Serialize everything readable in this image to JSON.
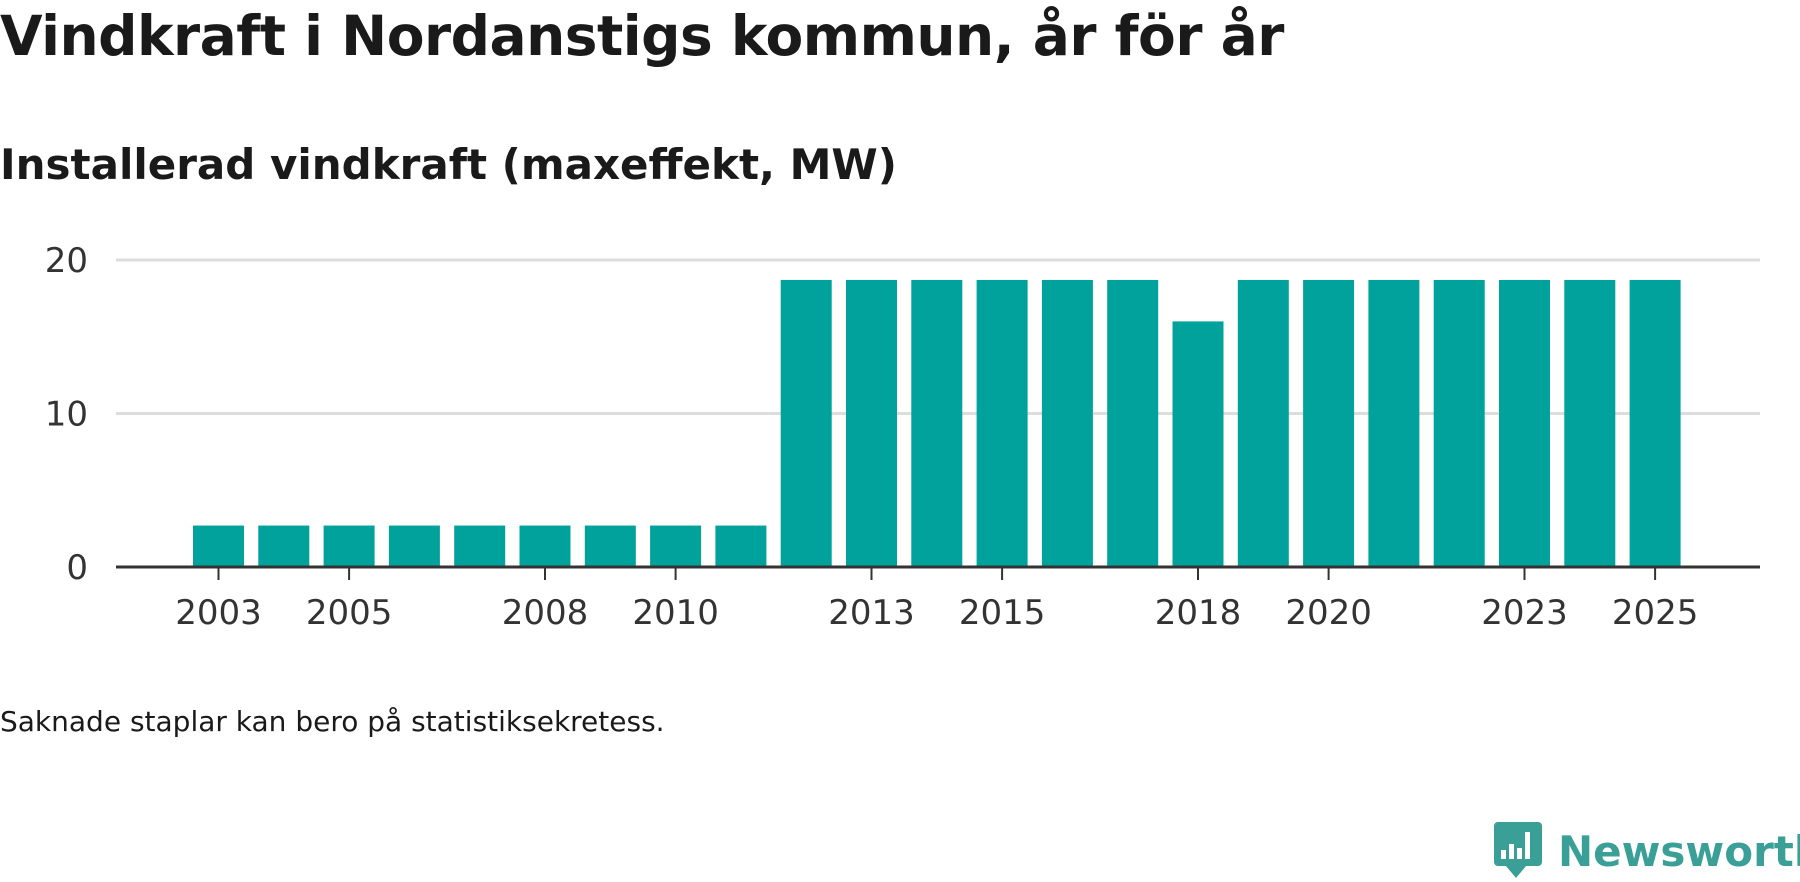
{
  "header": {
    "title": "Vindkraft i Nordanstigs kommun, år för år",
    "subtitle": "Installerad vindkraft (maxeffekt, MW)"
  },
  "note": "Saknade staplar kan bero på statistiksekretess.",
  "brand": {
    "name": "Newsworthy",
    "icon": "newsworthy-logo-icon"
  },
  "colors": {
    "bar": "#00a29b",
    "grid": "#dddddd",
    "axis": "#333333",
    "brand": "#3a9f97"
  },
  "chart_data": {
    "type": "bar",
    "title": "Installerad vindkraft (maxeffekt, MW)",
    "xlabel": "",
    "ylabel": "",
    "categories": [
      "2003",
      "2004",
      "2005",
      "2006",
      "2007",
      "2008",
      "2009",
      "2010",
      "2011",
      "2012",
      "2013",
      "2014",
      "2015",
      "2016",
      "2017",
      "2018",
      "2019",
      "2020",
      "2021",
      "2022",
      "2023",
      "2024",
      "2025"
    ],
    "values": [
      2.7,
      2.7,
      2.7,
      2.7,
      2.7,
      2.7,
      2.7,
      2.7,
      2.7,
      18.7,
      18.7,
      18.7,
      18.7,
      18.7,
      18.7,
      16.0,
      18.7,
      18.7,
      18.7,
      18.7,
      18.7,
      18.7,
      18.7
    ],
    "x_tick_labels": [
      "2003",
      "2005",
      "2008",
      "2010",
      "2013",
      "2015",
      "2018",
      "2020",
      "2023",
      "2025"
    ],
    "y_ticks": [
      0,
      10,
      20
    ],
    "ylim": [
      0,
      20
    ],
    "grid": true,
    "legend": "none"
  }
}
